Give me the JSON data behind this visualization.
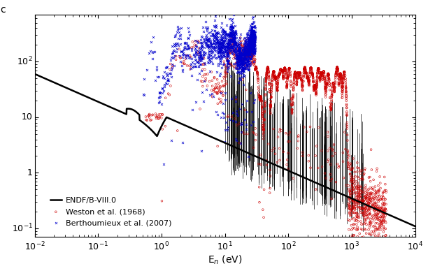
{
  "xlabel": "E$_n$ (eV)",
  "xlim": [
    0.01,
    10000
  ],
  "ylim": [
    0.07,
    700
  ],
  "endf_color": "#000000",
  "weston_color": "#cc0000",
  "berth_color": "#0000cc",
  "spike_color": "#000000",
  "legend_labels": [
    "ENDF/B-VIII.0",
    "Weston et al. (1968)",
    "Berthoumieux et al. (2007)"
  ],
  "background_color": "#ffffff",
  "ylabel_text": "c"
}
